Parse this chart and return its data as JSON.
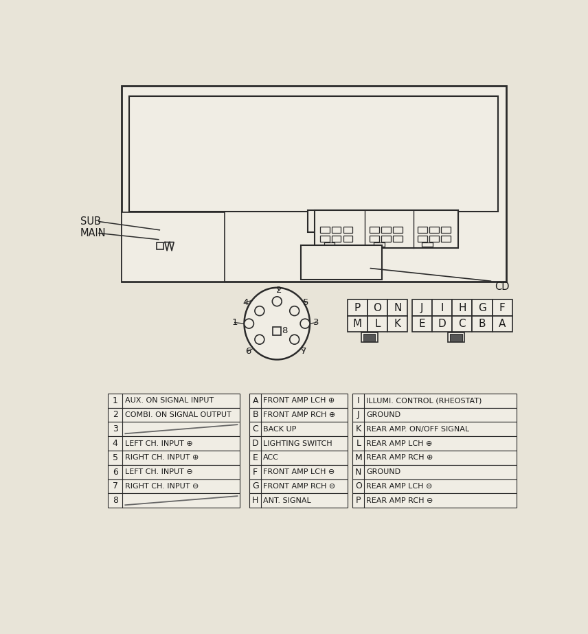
{
  "bg_color": "#e8e4d8",
  "line_color": "#2a2a2a",
  "text_color": "#1a1a1a",
  "unit_rows": [
    [
      "1",
      "AUX. ON SIGNAL INPUT"
    ],
    [
      "2",
      "COMBI. ON SIGNAL OUTPUT"
    ],
    [
      "3",
      ""
    ],
    [
      "4",
      "LEFT CH. INPUT ⊕"
    ],
    [
      "5",
      "RIGHT CH. INPUT ⊕"
    ],
    [
      "6",
      "LEFT CH. INPUT ⊖"
    ],
    [
      "7",
      "RIGHT CH. INPUT ⊖"
    ],
    [
      "8",
      ""
    ]
  ],
  "alpha_rows": [
    [
      "A",
      "FRONT AMP LCH ⊕"
    ],
    [
      "B",
      "FRONT AMP RCH ⊕"
    ],
    [
      "C",
      "BACK UP"
    ],
    [
      "D",
      "LIGHTING SWITCH"
    ],
    [
      "E",
      "ACC"
    ],
    [
      "F",
      "FRONT AMP LCH ⊖"
    ],
    [
      "G",
      "FRONT AMP RCH ⊖"
    ],
    [
      "H",
      "ANT. SIGNAL"
    ]
  ],
  "alpha_rows2": [
    [
      "I",
      "ILLUMI. CONTROL (RHEOSTAT)"
    ],
    [
      "J",
      "GROUND"
    ],
    [
      "K",
      "REAR AMP. ON/OFF SIGNAL"
    ],
    [
      "L",
      "REAR AMP LCH ⊕"
    ],
    [
      "M",
      "REAR AMP RCH ⊕"
    ],
    [
      "N",
      "GROUND"
    ],
    [
      "O",
      "REAR AMP LCH ⊖"
    ],
    [
      "P",
      "REAR AMP RCH ⊖"
    ]
  ],
  "sub_label": "SUB",
  "main_label": "MAIN",
  "cd_label": "CD"
}
